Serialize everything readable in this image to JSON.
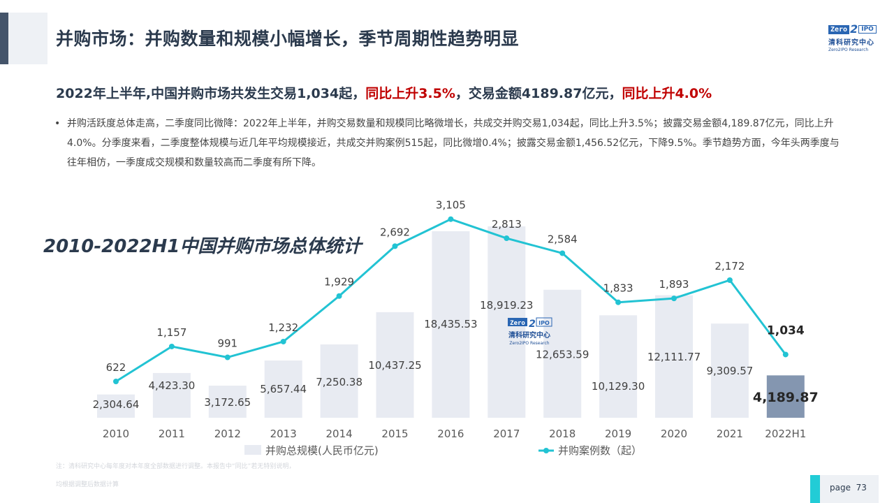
{
  "header": {
    "title": "并购市场：并购数量和规模小幅增长，季节周期性趋势明显"
  },
  "logo": {
    "zero": "Zero",
    "two": "2",
    "ipo": "IPO",
    "cn": "清科研究中心",
    "en": "Zero2IPO Research"
  },
  "subheading": {
    "part1": "2022年上半年,中国并购市场共发生交易1,034起，",
    "part2": "同比上升3.5%",
    "part3": "，交易金额4189.87亿元，",
    "part4": "同比上升4.0%"
  },
  "bullet": {
    "dot": "•",
    "text": "并购活跃度总体走高，二季度同比微降：2022年上半年，并购交易数量和规模同比略微增长，共成交并购交易1,034起，同比上升3.5%；披露交易金额4,189.87亿元，同比上升4.0%。分季度来看，二季度整体规模与近几年平均规模接近，共成交并购案例515起，同比微增0.4%；披露交易金额1,456.52亿元，下降9.5%。季节趋势方面，今年头两季度与往年相仿，一季度成交规模和数量较高而二季度有所下降。"
  },
  "chart_title": "2010-2022H1中国并购市场总体统计",
  "chart_data": {
    "type": "bar+line",
    "categories": [
      "2010",
      "2011",
      "2012",
      "2013",
      "2014",
      "2015",
      "2016",
      "2017",
      "2018",
      "2019",
      "2020",
      "2021",
      "2022H1"
    ],
    "series": [
      {
        "name": "并购总规模(人民币亿元)",
        "type": "bar",
        "values": [
          2304.64,
          4423.3,
          3172.65,
          5657.44,
          7250.38,
          10437.25,
          18435.53,
          18919.23,
          12653.59,
          10129.3,
          12111.77,
          9309.57,
          4189.87
        ],
        "labels": [
          "2,304.64",
          "4,423.30",
          "3,172.65",
          "5,657.44",
          "7,250.38",
          "10,437.25",
          "18,435.53",
          "18,919.23",
          "12,653.59",
          "10,129.30",
          "12,111.77",
          "9,309.57",
          "4,189.87"
        ]
      },
      {
        "name": "并购案例数（起）",
        "type": "line",
        "values": [
          622,
          1157,
          991,
          1232,
          1929,
          2692,
          3105,
          2813,
          2584,
          1833,
          1893,
          2172,
          1034
        ],
        "labels": [
          "622",
          "1,157",
          "991",
          "1,232",
          "1,929",
          "2,692",
          "3,105",
          "2,813",
          "2,584",
          "1,833",
          "1,893",
          "2,172",
          "1,034"
        ]
      }
    ],
    "grid": false,
    "legend": "bottom",
    "colors": {
      "bar": "#e8ebf2",
      "bar_highlight": "#8496b0",
      "line": "#22c3d3",
      "label": "#404040"
    }
  },
  "notes": {
    "line1": "注：清科研究中心每年度对本年度全部数据进行调整。本报告中“同比”若无特别说明，",
    "line2": "均根据调整后数据计算"
  },
  "footer": {
    "page_label": "page",
    "page_number": "73"
  }
}
